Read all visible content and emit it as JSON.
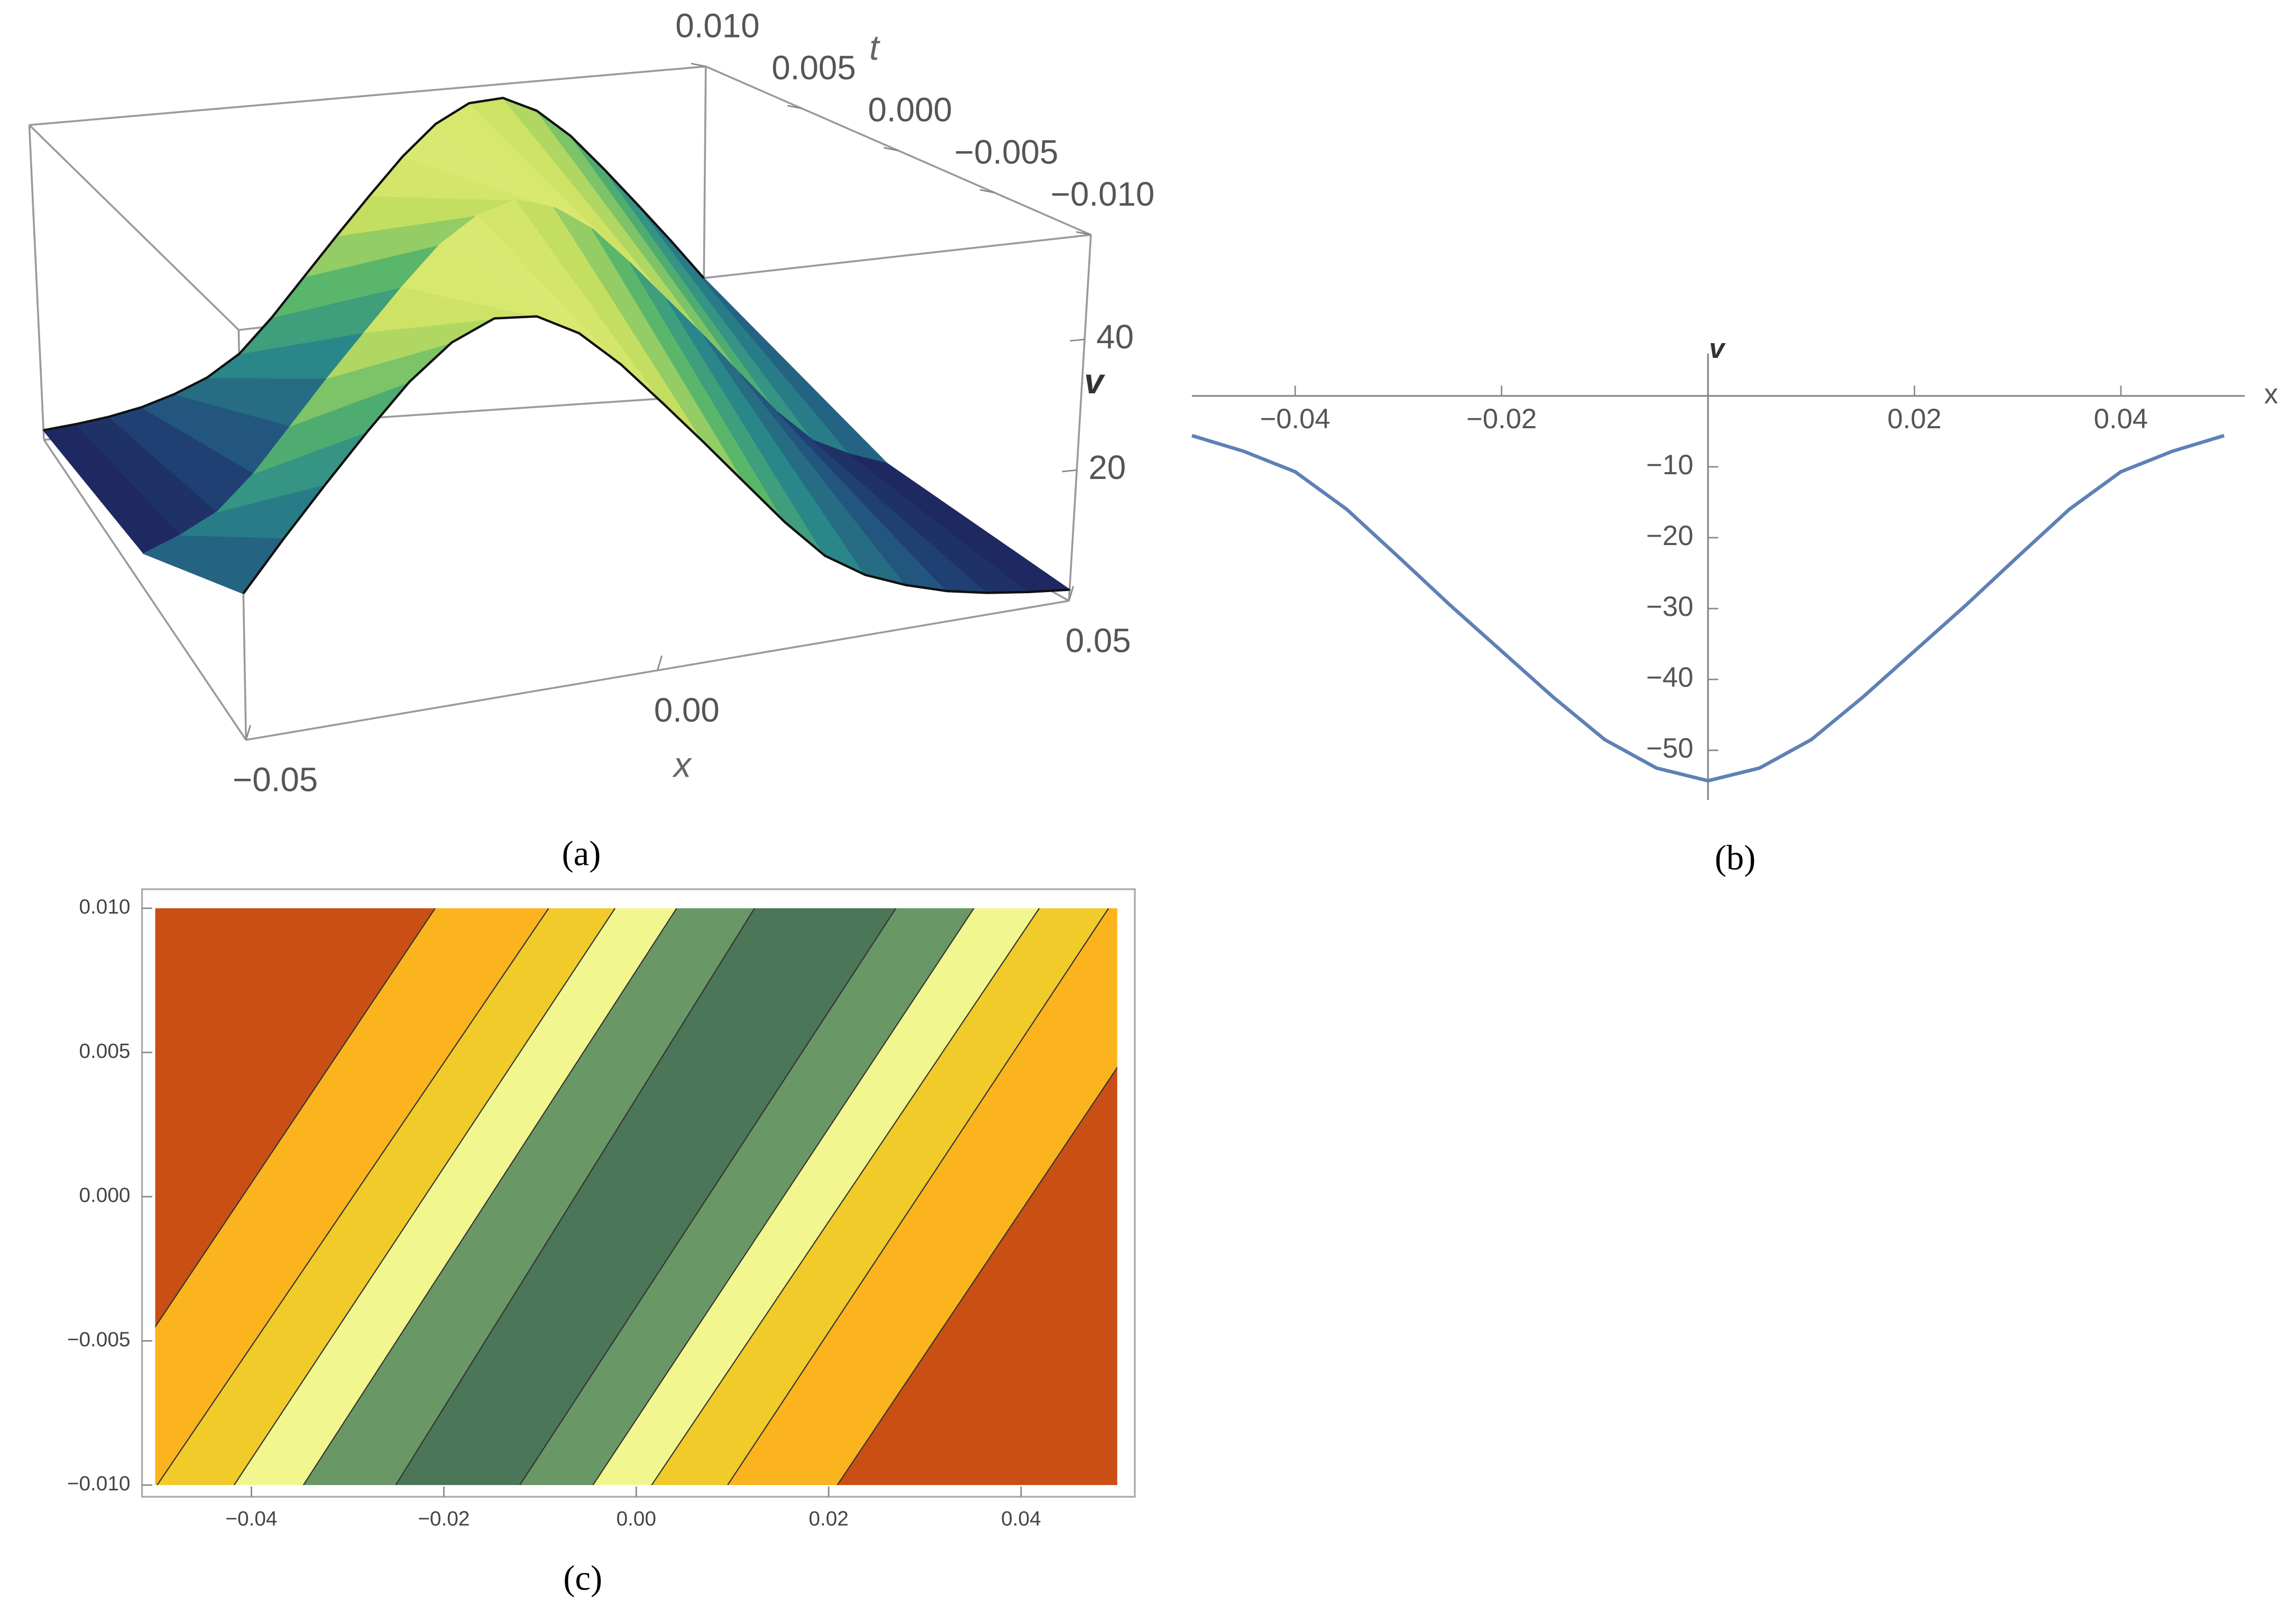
{
  "chart_data": [
    {
      "type": "surface",
      "caption": "(a)",
      "x_label": "x",
      "y_label": "t",
      "z_label": "v",
      "x": [
        -0.05,
        -0.045,
        -0.04,
        -0.035,
        -0.03,
        -0.025,
        -0.02,
        -0.015,
        -0.01,
        -0.005,
        0,
        0.005,
        0.01,
        0.015,
        0.02,
        0.025,
        0.03,
        0.035,
        0.04,
        0.045,
        0.05
      ],
      "t": [
        -0.01,
        0,
        0.01
      ],
      "values": [
        [
          20.0,
          26.8,
          33.4,
          39.9,
          46.1,
          50.9,
          53.6,
          53.2,
          50.1,
          44.9,
          38.6,
          32.1,
          25.4,
          18.7,
          12.8,
          9.0,
          6.5,
          4.6,
          3.3,
          2.4,
          1.7
        ],
        [
          5.6,
          7.8,
          10.7,
          16,
          22.7,
          29.5,
          36,
          42.5,
          48.5,
          52.5,
          54.3,
          52.5,
          48.5,
          42.5,
          36,
          29.5,
          22.7,
          16,
          10.7,
          7.8,
          5.6
        ],
        [
          1.7,
          2.4,
          3.3,
          4.6,
          6.5,
          9.0,
          12.8,
          18.7,
          25.4,
          32.1,
          38.6,
          44.9,
          50.1,
          53.2,
          53.6,
          50.9,
          46.1,
          39.9,
          33.4,
          26.8,
          20.0
        ]
      ],
      "xlim": [
        -0.05,
        0.05
      ],
      "ylim": [
        -0.01,
        0.01
      ],
      "zlim": [
        0,
        56
      ],
      "xticks": [
        {
          "value": -0.05,
          "label": "−0.05"
        },
        {
          "value": 0,
          "label": "0.00"
        },
        {
          "value": 0.05,
          "label": "0.05"
        }
      ],
      "yticks": [
        {
          "value": 0.01,
          "label": "0.010"
        },
        {
          "value": 0.005,
          "label": "0.005"
        },
        {
          "value": 0,
          "label": "0.000"
        },
        {
          "value": -0.005,
          "label": "−0.005"
        },
        {
          "value": -0.01,
          "label": "−0.010"
        }
      ],
      "zticks": [
        20,
        40
      ],
      "colorscale": [
        "#1b0f4f",
        "#224f7e",
        "#2a8a8a",
        "#58b56a",
        "#c7e060",
        "#f8f58a"
      ]
    },
    {
      "type": "line",
      "caption": "(b)",
      "x_label": "x",
      "y_label": "v",
      "x": [
        -0.05,
        -0.045,
        -0.04,
        -0.035,
        -0.03,
        -0.025,
        -0.02,
        -0.015,
        -0.01,
        -0.005,
        0,
        0.005,
        0.01,
        0.015,
        0.02,
        0.025,
        0.03,
        0.035,
        0.04,
        0.045,
        0.05
      ],
      "values": [
        -5.6,
        -7.8,
        -10.7,
        -16,
        -22.7,
        -29.5,
        -36,
        -42.5,
        -48.5,
        -52.5,
        -54.3,
        -52.5,
        -48.5,
        -42.5,
        -36,
        -29.5,
        -22.7,
        -16,
        -10.7,
        -7.8,
        -5.6
      ],
      "color": "#5e81b5",
      "xlim": [
        -0.05,
        0.052
      ],
      "ylim": [
        -57,
        6
      ],
      "xticks": [
        {
          "value": -0.04,
          "label": "−0.04"
        },
        {
          "value": -0.02,
          "label": "−0.02"
        },
        {
          "value": 0.02,
          "label": "0.02"
        },
        {
          "value": 0.04,
          "label": "0.04"
        }
      ],
      "yticks": [
        {
          "value": -10,
          "label": "−10"
        },
        {
          "value": -20,
          "label": "−20"
        },
        {
          "value": -30,
          "label": "−30"
        },
        {
          "value": -40,
          "label": "−40"
        },
        {
          "value": -50,
          "label": "−50"
        }
      ]
    },
    {
      "type": "contour",
      "caption": "(c)",
      "xlim": [
        -0.05,
        0.05
      ],
      "ylim": [
        -0.01,
        0.01
      ],
      "xticks": [
        {
          "value": -0.04,
          "label": "−0.04"
        },
        {
          "value": -0.02,
          "label": "−0.02"
        },
        {
          "value": 0,
          "label": "0.00"
        },
        {
          "value": 0.02,
          "label": "0.02"
        },
        {
          "value": 0.04,
          "label": "0.04"
        }
      ],
      "yticks": [
        {
          "value": 0.01,
          "label": "0.010"
        },
        {
          "value": 0.005,
          "label": "0.005"
        },
        {
          "value": 0,
          "label": "0.000"
        },
        {
          "value": -0.005,
          "label": "−0.005"
        },
        {
          "value": -0.01,
          "label": "−0.010"
        }
      ],
      "contours": [
        {
          "x_bottom": -0.061,
          "x_top": -0.0209
        },
        {
          "x_bottom": -0.0498,
          "x_top": -0.0091
        },
        {
          "x_bottom": -0.0418,
          "x_top": -0.0022
        },
        {
          "x_bottom": -0.0346,
          "x_top": 0.0042
        },
        {
          "x_bottom": -0.025,
          "x_top": 0.0123
        },
        {
          "x_bottom": -0.0121,
          "x_top": 0.027
        },
        {
          "x_bottom": -0.0045,
          "x_top": 0.0351
        },
        {
          "x_bottom": 0.0016,
          "x_top": 0.0419
        },
        {
          "x_bottom": 0.0095,
          "x_top": 0.0491
        },
        {
          "x_bottom": 0.0209,
          "x_top": 0.0611
        }
      ],
      "band_colors": [
        "#c94f15",
        "#fbb41d",
        "#f0cb29",
        "#f2f68e",
        "#6a9766",
        "#4b7658",
        "#6a9766",
        "#f2f68e",
        "#f0cb29",
        "#fbb41d",
        "#c94f15"
      ]
    }
  ]
}
